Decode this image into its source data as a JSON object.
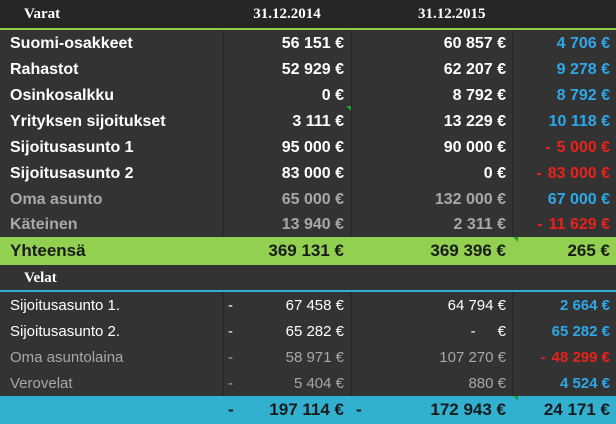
{
  "header": {
    "title": "Varat",
    "col_2014": "31.12.2014",
    "col_2015": "31.12.2015"
  },
  "assets": [
    {
      "label": "Suomi-osakkeet",
      "v2014": "56 151 €",
      "v2015": "60 857 €",
      "diff": "4 706 €"
    },
    {
      "label": "Rahastot",
      "v2014": "52 929 €",
      "v2015": "62 207 €",
      "diff": "9 278 €"
    },
    {
      "label": "Osinkosalkku",
      "v2014": "0 €",
      "v2015": "8 792 €",
      "diff": "8 792 €"
    },
    {
      "label": "Yrityksen sijoitukset",
      "v2014": "3 111 €",
      "v2015": "13 229 €",
      "diff": "10 118 €"
    },
    {
      "label": "Sijoitusasunto 1",
      "v2014": "95 000 €",
      "v2015": "90 000 €",
      "diff_sign": "-",
      "diff": "5 000 €"
    },
    {
      "label": "Sijoitusasunto 2",
      "v2014": "83 000 €",
      "v2015": "0 €",
      "diff_sign": "-",
      "diff": "83 000 €"
    },
    {
      "label": "Oma asunto",
      "v2014": "65 000 €",
      "v2015": "132 000 €",
      "diff": "67 000 €"
    },
    {
      "label": "Käteinen",
      "v2014": "13 940 €",
      "v2015": "2 311 €",
      "diff_sign": "-",
      "diff": "11 629 €"
    }
  ],
  "assets_total": {
    "label": "Yhteensä",
    "v2014": "369 131 €",
    "v2015": "369 396 €",
    "diff": "265 €"
  },
  "liabilities_title": "Velat",
  "liabilities": [
    {
      "label": "Sijoitusasunto 1.",
      "sign2014": "-",
      "v2014": "67 458 €",
      "sign2015": "-",
      "v2015": "64 794 €",
      "diff": "2 664 €"
    },
    {
      "label": "Sijoitusasunto 2.",
      "sign2014": "-",
      "v2014": "65 282 €",
      "sign2015": "-",
      "v2015": "€",
      "diff": "65 282 €"
    },
    {
      "label": "Oma asuntolaina",
      "sign2014": "-",
      "v2014": "58 971 €",
      "sign2015": "-",
      "v2015": "107 270 €",
      "diff_sign": "-",
      "diff": "48 299 €"
    },
    {
      "label": "Verovelat",
      "sign2014": "-",
      "v2014": "5 404 €",
      "sign2015": "-",
      "v2015": "880 €",
      "diff": "4 524 €"
    }
  ],
  "liabilities_total": {
    "sign2014": "-",
    "v2014": "197 114 €",
    "sign2015": "-",
    "v2015": "172 943 €",
    "diff": "24 171 €"
  },
  "colors": {
    "background": "#333333",
    "positive": "#2fa8e8",
    "negative": "#e8231b",
    "total_assets_bg": "#92d050",
    "total_liabilities_bg": "#31b0d0"
  }
}
